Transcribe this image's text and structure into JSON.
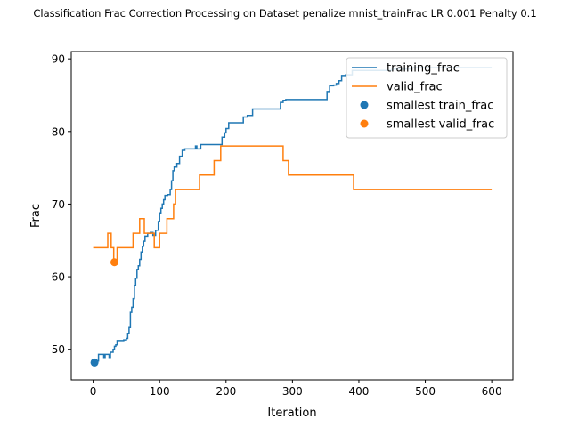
{
  "chart_data": {
    "type": "line",
    "title": "Classification Frac Correction Processing on Dataset penalize mnist_trainFrac LR 0.001 Penalty 0.1",
    "xlabel": "Iteration",
    "ylabel": "Frac",
    "xlim": [
      -33,
      632
    ],
    "ylim": [
      45.8,
      91.0
    ],
    "xticks": [
      0,
      100,
      200,
      300,
      400,
      500,
      600
    ],
    "yticks": [
      50,
      60,
      70,
      80,
      90
    ],
    "grid": false,
    "legend_position": "top-right",
    "colors": {
      "training_frac": "#1f77b4",
      "valid_frac": "#ff7f0e"
    },
    "series": [
      {
        "name": "training_frac",
        "kind": "step-line",
        "points": [
          [
            0,
            48.2
          ],
          [
            5,
            48.4
          ],
          [
            8,
            49.3
          ],
          [
            12,
            49.3
          ],
          [
            16,
            48.9
          ],
          [
            18,
            49.3
          ],
          [
            22,
            49.3
          ],
          [
            24,
            48.9
          ],
          [
            26,
            49.6
          ],
          [
            28,
            49.6
          ],
          [
            30,
            50.0
          ],
          [
            32,
            50.4
          ],
          [
            34,
            50.6
          ],
          [
            36,
            51.2
          ],
          [
            42,
            51.2
          ],
          [
            46,
            51.3
          ],
          [
            50,
            51.5
          ],
          [
            52,
            52.2
          ],
          [
            54,
            53.0
          ],
          [
            56,
            55.1
          ],
          [
            58,
            55.8
          ],
          [
            60,
            57.0
          ],
          [
            62,
            58.8
          ],
          [
            64,
            59.8
          ],
          [
            66,
            61.0
          ],
          [
            68,
            61.5
          ],
          [
            70,
            62.4
          ],
          [
            72,
            63.4
          ],
          [
            74,
            64.2
          ],
          [
            76,
            64.9
          ],
          [
            78,
            65.6
          ],
          [
            82,
            66.0
          ],
          [
            86,
            66.1
          ],
          [
            90,
            65.7
          ],
          [
            94,
            66.4
          ],
          [
            98,
            67.6
          ],
          [
            100,
            68.8
          ],
          [
            102,
            69.4
          ],
          [
            104,
            70.0
          ],
          [
            106,
            70.6
          ],
          [
            108,
            71.2
          ],
          [
            112,
            71.3
          ],
          [
            114,
            71.3
          ],
          [
            116,
            72.0
          ],
          [
            118,
            73.2
          ],
          [
            120,
            74.6
          ],
          [
            122,
            75.1
          ],
          [
            126,
            75.6
          ],
          [
            130,
            76.6
          ],
          [
            134,
            77.4
          ],
          [
            138,
            77.6
          ],
          [
            146,
            77.6
          ],
          [
            150,
            77.6
          ],
          [
            154,
            78.0
          ],
          [
            156,
            77.6
          ],
          [
            160,
            77.6
          ],
          [
            162,
            78.2
          ],
          [
            172,
            78.2
          ],
          [
            190,
            78.2
          ],
          [
            194,
            79.2
          ],
          [
            198,
            79.8
          ],
          [
            200,
            80.4
          ],
          [
            204,
            81.2
          ],
          [
            208,
            81.2
          ],
          [
            222,
            81.2
          ],
          [
            226,
            82.0
          ],
          [
            232,
            82.2
          ],
          [
            240,
            83.1
          ],
          [
            256,
            83.1
          ],
          [
            280,
            83.1
          ],
          [
            282,
            84.0
          ],
          [
            286,
            84.3
          ],
          [
            290,
            84.4
          ],
          [
            320,
            84.4
          ],
          [
            350,
            84.4
          ],
          [
            352,
            85.5
          ],
          [
            356,
            86.3
          ],
          [
            362,
            86.4
          ],
          [
            366,
            86.6
          ],
          [
            370,
            87.0
          ],
          [
            374,
            87.7
          ],
          [
            380,
            87.8
          ],
          [
            390,
            88.4
          ],
          [
            420,
            88.4
          ],
          [
            440,
            88.4
          ],
          [
            450,
            88.6
          ],
          [
            470,
            88.6
          ],
          [
            480,
            88.8
          ],
          [
            500,
            88.8
          ],
          [
            540,
            88.8
          ],
          [
            570,
            88.8
          ],
          [
            600,
            88.8
          ]
        ]
      },
      {
        "name": "valid_frac",
        "kind": "step-line",
        "points": [
          [
            0,
            64.0
          ],
          [
            20,
            64.0
          ],
          [
            22,
            66.0
          ],
          [
            26,
            66.0
          ],
          [
            27,
            64.0
          ],
          [
            29,
            64.0
          ],
          [
            31,
            62.0
          ],
          [
            35,
            62.0
          ],
          [
            36,
            64.0
          ],
          [
            58,
            64.0
          ],
          [
            60,
            66.0
          ],
          [
            68,
            66.0
          ],
          [
            70,
            68.0
          ],
          [
            76,
            68.0
          ],
          [
            77,
            66.0
          ],
          [
            90,
            66.0
          ],
          [
            92,
            64.0
          ],
          [
            98,
            64.0
          ],
          [
            100,
            66.0
          ],
          [
            110,
            66.0
          ],
          [
            111,
            68.0
          ],
          [
            120,
            68.0
          ],
          [
            121,
            70.0
          ],
          [
            122,
            70.0
          ],
          [
            124,
            72.0
          ],
          [
            158,
            72.0
          ],
          [
            160,
            74.0
          ],
          [
            180,
            74.0
          ],
          [
            182,
            76.0
          ],
          [
            190,
            76.0
          ],
          [
            192,
            78.0
          ],
          [
            284,
            78.0
          ],
          [
            286,
            76.0
          ],
          [
            292,
            76.0
          ],
          [
            294,
            74.0
          ],
          [
            390,
            74.0
          ],
          [
            392,
            72.0
          ],
          [
            600,
            72.0
          ]
        ]
      }
    ],
    "markers": [
      {
        "name": "smallest train_frac",
        "x": 2,
        "y": 48.2,
        "color": "#1f77b4"
      },
      {
        "name": "smallest valid_frac",
        "x": 32,
        "y": 62.0,
        "color": "#ff7f0e"
      }
    ],
    "legend": [
      {
        "label": "training_frac",
        "kind": "line",
        "color": "#1f77b4"
      },
      {
        "label": "valid_frac",
        "kind": "line",
        "color": "#ff7f0e"
      },
      {
        "label": "smallest train_frac",
        "kind": "dot",
        "color": "#1f77b4"
      },
      {
        "label": "smallest valid_frac",
        "kind": "dot",
        "color": "#ff7f0e"
      }
    ]
  }
}
